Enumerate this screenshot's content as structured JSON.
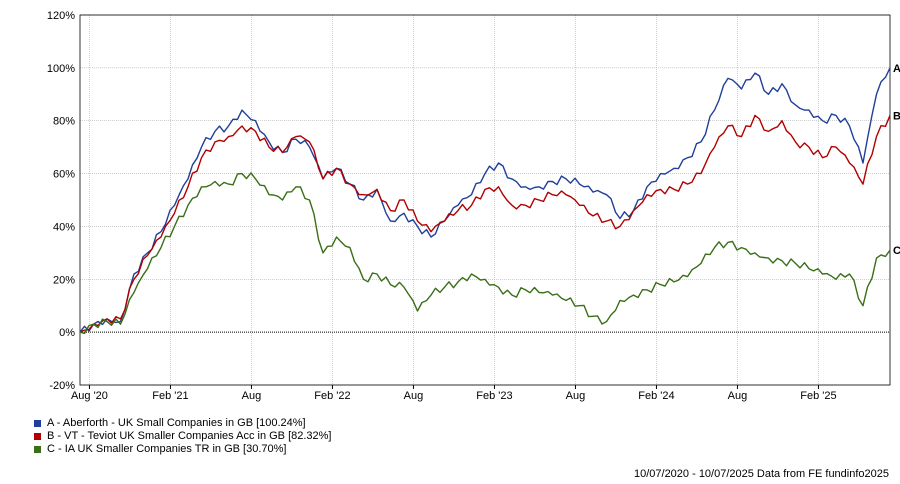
{
  "chart_data": {
    "type": "line",
    "ylim": [
      -20,
      120
    ],
    "y_ticks": [
      "-20%",
      "0%",
      "20%",
      "40%",
      "60%",
      "80%",
      "100%",
      "120%"
    ],
    "y_tick_values": [
      -20,
      0,
      20,
      40,
      60,
      80,
      100,
      120
    ],
    "x_range": [
      0,
      60
    ],
    "x_ticks": [
      {
        "label": "Aug '20",
        "x": 0.7
      },
      {
        "label": "Feb '21",
        "x": 6.7
      },
      {
        "label": "Aug",
        "x": 12.7
      },
      {
        "label": "Feb '22",
        "x": 18.7
      },
      {
        "label": "Aug",
        "x": 24.7
      },
      {
        "label": "Feb '23",
        "x": 30.7
      },
      {
        "label": "Aug",
        "x": 36.7
      },
      {
        "label": "Feb '24",
        "x": 42.7
      },
      {
        "label": "Aug",
        "x": 48.7
      },
      {
        "label": "Feb '25",
        "x": 54.7
      }
    ],
    "grid": true,
    "legend_placement": "bottom-left",
    "x": [
      0,
      1,
      2,
      3,
      4,
      5,
      6,
      7,
      8,
      9,
      10,
      11,
      12,
      13,
      14,
      15,
      16,
      17,
      18,
      19,
      20,
      21,
      22,
      23,
      24,
      25,
      26,
      27,
      28,
      29,
      30,
      31,
      32,
      33,
      34,
      35,
      36,
      37,
      38,
      39,
      40,
      41,
      42,
      43,
      44,
      45,
      46,
      47,
      48,
      49,
      50,
      51,
      52,
      53,
      54,
      55,
      56,
      57,
      58,
      59,
      60
    ],
    "series": [
      {
        "name": "A - Aberforth - UK Small Companies in GB [100.24%]",
        "short": "A",
        "color": "#1f3f9a",
        "values": [
          0,
          3,
          5,
          4,
          22,
          30,
          38,
          48,
          58,
          70,
          76,
          78,
          84,
          80,
          72,
          68,
          73,
          70,
          58,
          62,
          56,
          50,
          54,
          42,
          45,
          40,
          36,
          42,
          48,
          52,
          60,
          64,
          58,
          55,
          55,
          57,
          58,
          56,
          53,
          52,
          43,
          46,
          55,
          60,
          62,
          66,
          72,
          84,
          96,
          92,
          98,
          90,
          94,
          86,
          84,
          80,
          82,
          78,
          64,
          90,
          100
        ]
      },
      {
        "name": "B - VT - Teviot UK Smaller Companies Acc in GB [82.32%]",
        "short": "B",
        "color": "#b00000",
        "values": [
          0,
          3,
          5,
          5,
          20,
          29,
          36,
          45,
          55,
          66,
          72,
          74,
          78,
          76,
          70,
          68,
          74,
          72,
          58,
          62,
          56,
          52,
          54,
          46,
          50,
          42,
          38,
          42,
          46,
          48,
          54,
          55,
          48,
          48,
          50,
          52,
          52,
          48,
          44,
          42,
          40,
          46,
          52,
          54,
          54,
          56,
          60,
          70,
          78,
          74,
          82,
          76,
          80,
          72,
          70,
          66,
          70,
          64,
          56,
          74,
          82
        ]
      },
      {
        "name": "C - IA UK Smaller Companies TR in GB [30.70%]",
        "short": "C",
        "color": "#3a6e17",
        "values": [
          0,
          3,
          4,
          3,
          15,
          24,
          32,
          40,
          48,
          55,
          57,
          56,
          60,
          58,
          52,
          50,
          55,
          50,
          30,
          36,
          32,
          20,
          22,
          18,
          17,
          8,
          14,
          17,
          19,
          22,
          20,
          17,
          14,
          16,
          15,
          14,
          12,
          10,
          6,
          4,
          12,
          14,
          16,
          18,
          19,
          21,
          26,
          32,
          34,
          32,
          30,
          28,
          27,
          26,
          24,
          22,
          20,
          22,
          10,
          28,
          31
        ]
      }
    ]
  },
  "legend": [
    {
      "label": "A - Aberforth - UK Small Companies in GB [100.24%]",
      "color": "#1f3f9a"
    },
    {
      "label": "B - VT - Teviot UK Smaller Companies Acc in GB [82.32%]",
      "color": "#b00000"
    },
    {
      "label": "C - IA UK Smaller Companies TR in GB [30.70%]",
      "color": "#3a6e17"
    }
  ],
  "footer": "10/07/2020 - 10/07/2025 Data from FE fundinfo2025"
}
